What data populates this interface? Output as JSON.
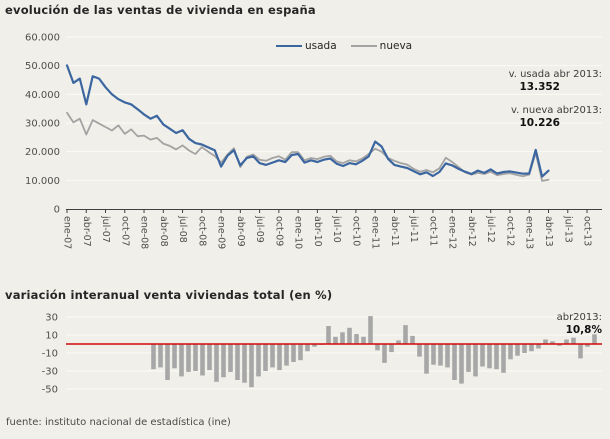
{
  "colors": {
    "background": "#f0efe9",
    "gridline": "#fcfbf6",
    "axis": "#3f3f3f",
    "tick_text": "#4f4f4f",
    "usada_line": "#3b66a0",
    "nueva_line": "#a3a3a3",
    "bar": "#a7a7a7",
    "zero_line_red": "#cf0a0a"
  },
  "chart1": {
    "annotations": {
      "usada_label": "v. usada abr 2013:",
      "usada_value": "13.352",
      "nueva_label": "v. nueva abr2013:",
      "nueva_value": "10.226"
    }
  },
  "chart2": {
    "annotations": {
      "label": "abr2013:",
      "value": "10,8%"
    }
  },
  "footer": {
    "text": "fuente: instituto nacional de estadística (ine)"
  },
  "chart_data": [
    {
      "type": "line",
      "title": "evolución de las ventas de vivienda en españa",
      "ylim": [
        0,
        60000
      ],
      "grid": true,
      "legend_position": "top-center",
      "y_ticks": {
        "values": [
          60000,
          50000,
          40000,
          30000,
          20000,
          10000,
          0
        ],
        "labels": [
          "60.000",
          "50.000",
          "40.000",
          "30.000",
          "20.000",
          "10.000",
          "0"
        ]
      },
      "x_ticks": {
        "labels": [
          "ene-07",
          "abr-07",
          "jul-07",
          "oct-07",
          "ene-08",
          "abr-08",
          "jul-08",
          "oct-08",
          "ene-09",
          "abr-09",
          "jul-09",
          "oct-09",
          "ene-10",
          "abr-10",
          "jul-10",
          "oct-10",
          "ene-11",
          "abr-11",
          "jul-11",
          "oct-11",
          "ene-12",
          "abr-12",
          "jul-12",
          "oct-12",
          "ene-13",
          "abr-13",
          "jul-13",
          "oct-13"
        ]
      },
      "x": [
        "ene-07",
        "feb-07",
        "mar-07",
        "abr-07",
        "may-07",
        "jun-07",
        "jul-07",
        "ago-07",
        "sep-07",
        "oct-07",
        "nov-07",
        "dic-07",
        "ene-08",
        "feb-08",
        "mar-08",
        "abr-08",
        "may-08",
        "jun-08",
        "jul-08",
        "ago-08",
        "sep-08",
        "oct-08",
        "nov-08",
        "dic-08",
        "ene-09",
        "feb-09",
        "mar-09",
        "abr-09",
        "may-09",
        "jun-09",
        "jul-09",
        "ago-09",
        "sep-09",
        "oct-09",
        "nov-09",
        "dic-09",
        "ene-10",
        "feb-10",
        "mar-10",
        "abr-10",
        "may-10",
        "jun-10",
        "jul-10",
        "ago-10",
        "sep-10",
        "oct-10",
        "nov-10",
        "dic-10",
        "ene-11",
        "feb-11",
        "mar-11",
        "abr-11",
        "may-11",
        "jun-11",
        "jul-11",
        "ago-11",
        "sep-11",
        "oct-11",
        "nov-11",
        "dic-11",
        "ene-12",
        "feb-12",
        "mar-12",
        "abr-12",
        "may-12",
        "jun-12",
        "jul-12",
        "ago-12",
        "sep-12",
        "oct-12",
        "nov-12",
        "dic-12",
        "ene-13",
        "feb-13",
        "mar-13",
        "abr-13"
      ],
      "series": [
        {
          "name": "usada",
          "color": "#3b66a0",
          "values": [
            50100,
            44000,
            45500,
            36500,
            46300,
            45500,
            42500,
            40000,
            38300,
            37200,
            36500,
            34800,
            33000,
            31500,
            32500,
            29500,
            28000,
            26500,
            27500,
            24500,
            23000,
            22500,
            21500,
            20500,
            14800,
            18600,
            20500,
            15200,
            17800,
            18400,
            16000,
            15400,
            16200,
            17000,
            16400,
            18800,
            19200,
            16200,
            17000,
            16400,
            17200,
            17600,
            15800,
            15000,
            16000,
            15600,
            16800,
            18400,
            23500,
            21800,
            17500,
            15400,
            14800,
            14300,
            13200,
            12100,
            12800,
            11500,
            12900,
            15900,
            15200,
            14000,
            13000,
            12200,
            13400,
            12600,
            13800,
            12400,
            12900,
            13100,
            12700,
            12300,
            12400,
            20600,
            11300,
            13352
          ]
        },
        {
          "name": "nueva",
          "color": "#a3a3a3",
          "values": [
            33600,
            30200,
            31500,
            26000,
            31000,
            29800,
            28600,
            27400,
            29200,
            26200,
            27800,
            25400,
            25600,
            24200,
            24800,
            22800,
            22000,
            20800,
            22200,
            20400,
            19200,
            21600,
            20000,
            18500,
            16200,
            19000,
            21200,
            14600,
            18200,
            19000,
            17200,
            16800,
            17800,
            18400,
            17200,
            19800,
            19800,
            17000,
            17800,
            17400,
            18200,
            18600,
            16600,
            16000,
            17000,
            16600,
            17600,
            19200,
            21000,
            20000,
            17800,
            16800,
            16000,
            15500,
            14000,
            13000,
            13600,
            12800,
            14200,
            17900,
            16400,
            14600,
            12800,
            12000,
            12600,
            12200,
            13000,
            11800,
            12200,
            12500,
            11900,
            11400,
            12000,
            19600,
            9800,
            10226
          ]
        }
      ]
    },
    {
      "type": "bar",
      "title": "variación interanual venta viviendas total (en %)",
      "ylim": [
        -50,
        30
      ],
      "grid": true,
      "bar_color": "#a7a7a7",
      "zero_line_color": "#cf0a0a",
      "y_ticks": {
        "values": [
          30,
          10,
          -10,
          -30,
          -50
        ],
        "labels": [
          "30",
          "10",
          "-10",
          "-30",
          "-50"
        ]
      },
      "months": [
        "ene-08",
        "feb-08",
        "mar-08",
        "abr-08",
        "may-08",
        "jun-08",
        "jul-08",
        "ago-08",
        "sep-08",
        "oct-08",
        "nov-08",
        "dic-08",
        "ene-09",
        "feb-09",
        "mar-09",
        "abr-09",
        "may-09",
        "jun-09",
        "jul-09",
        "ago-09",
        "sep-09",
        "oct-09",
        "nov-09",
        "dic-09",
        "ene-10",
        "feb-10",
        "mar-10",
        "abr-10",
        "may-10",
        "jun-10",
        "jul-10",
        "ago-10",
        "sep-10",
        "oct-10",
        "nov-10",
        "dic-10",
        "ene-11",
        "feb-11",
        "mar-11",
        "abr-11",
        "may-11",
        "jun-11",
        "jul-11",
        "ago-11",
        "sep-11",
        "oct-11",
        "nov-11",
        "dic-11",
        "ene-12",
        "feb-12",
        "mar-12",
        "abr-12",
        "may-12",
        "jun-12",
        "jul-12",
        "ago-12",
        "sep-12",
        "oct-12",
        "nov-12",
        "dic-12",
        "ene-13",
        "feb-13",
        "mar-13",
        "abr-13"
      ],
      "values": [
        -28,
        -26,
        -40,
        -27,
        -36,
        -31,
        -30,
        -35,
        -29,
        -42,
        -37,
        -31,
        -40,
        -43,
        -48,
        -36,
        -30,
        -26,
        -29,
        -24,
        -20,
        -18,
        -8,
        -3,
        -1,
        20,
        8,
        13,
        18,
        11,
        8,
        31,
        -7,
        -21,
        -9,
        4,
        21,
        9,
        -14,
        -33,
        -23,
        -24,
        -26,
        -40,
        -44,
        -31,
        -36,
        -25,
        -27,
        -28,
        -32,
        -17,
        -13,
        -10,
        -8,
        -5,
        5,
        3,
        -2,
        5,
        7,
        -16,
        -3,
        10.8
      ]
    }
  ]
}
